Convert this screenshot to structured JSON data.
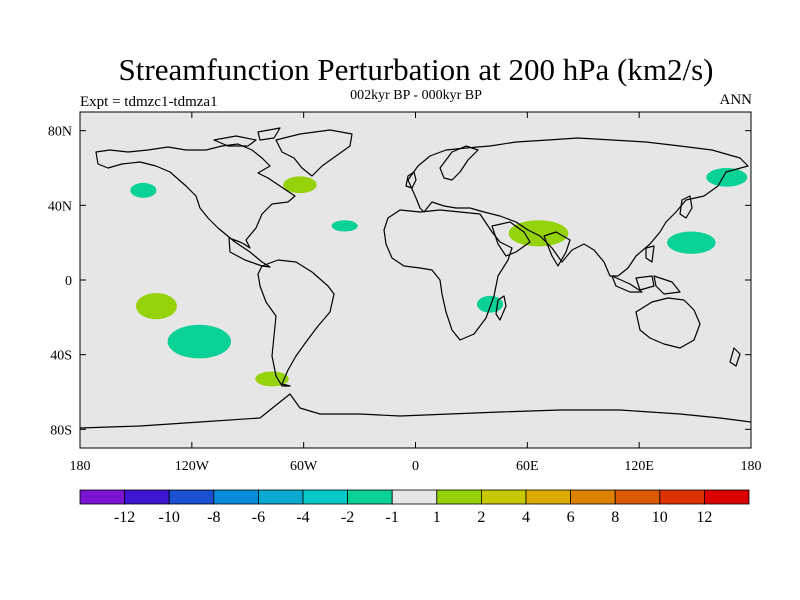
{
  "chart_data": {
    "type": "heatmap",
    "title": "Streamfunction Perturbation at 200 hPa (km2/s)",
    "subtitle": "002kyr BP - 000kyr BP",
    "left_label": "Expt = tdmzc1-tdmza1",
    "right_label": "ANN",
    "xlim": [
      -180,
      180
    ],
    "ylim": [
      -90,
      90
    ],
    "x_ticks": [
      {
        "value": -180,
        "label": "180"
      },
      {
        "value": -120,
        "label": "120W"
      },
      {
        "value": -60,
        "label": "60W"
      },
      {
        "value": 0,
        "label": "0"
      },
      {
        "value": 60,
        "label": "60E"
      },
      {
        "value": 120,
        "label": "120E"
      },
      {
        "value": 180,
        "label": "180"
      }
    ],
    "y_ticks": [
      {
        "value": 80,
        "label": "80N"
      },
      {
        "value": 40,
        "label": "40N"
      },
      {
        "value": 0,
        "label": "0"
      },
      {
        "value": -40,
        "label": "40S"
      },
      {
        "value": -80,
        "label": "80S"
      }
    ],
    "colorbar": {
      "colors": [
        "#7a14d2",
        "#3c14d2",
        "#1a50d2",
        "#0a8cdc",
        "#0aaad2",
        "#08c8c8",
        "#0ad296",
        "#e6e6e6",
        "#96d20a",
        "#c8c800",
        "#dcaa00",
        "#dc8200",
        "#dc5a00",
        "#dc3200",
        "#dc0000"
      ],
      "labels": [
        "-12",
        "-10",
        "-8",
        "-6",
        "-4",
        "-2",
        "-1",
        "1",
        "2",
        "4",
        "6",
        "8",
        "10",
        "12"
      ]
    },
    "anomalies": [
      {
        "lon": -146,
        "lat": 48,
        "rlon": 7,
        "rlat": 4,
        "color": "#0ad296",
        "range": "-2 to -1"
      },
      {
        "lon": -62,
        "lat": 51,
        "rlon": 9,
        "rlat": 4.5,
        "color": "#96d20a",
        "range": "1 to 2"
      },
      {
        "lon": -38,
        "lat": 29,
        "rlon": 7,
        "rlat": 3,
        "color": "#0ad296",
        "range": "-2 to -1"
      },
      {
        "lon": 66,
        "lat": 25,
        "rlon": 16,
        "rlat": 7,
        "color": "#96d20a",
        "range": "1 to 2"
      },
      {
        "lon": 167,
        "lat": 55,
        "rlon": 11,
        "rlat": 5,
        "color": "#0ad296",
        "range": "-2 to -1"
      },
      {
        "lon": 148,
        "lat": 20,
        "rlon": 13,
        "rlat": 6,
        "color": "#0ad296",
        "range": "-2 to -1"
      },
      {
        "lon": -139,
        "lat": -14,
        "rlon": 11,
        "rlat": 7,
        "color": "#96d20a",
        "range": "1 to 2"
      },
      {
        "lon": -116,
        "lat": -33,
        "rlon": 17,
        "rlat": 9,
        "color": "#0ad296",
        "range": "-2 to -1"
      },
      {
        "lon": 40,
        "lat": -13,
        "rlon": 7,
        "rlat": 4.5,
        "color": "#0ad296",
        "range": "-2 to -1"
      },
      {
        "lon": -77,
        "lat": -53,
        "rlon": 9,
        "rlat": 4,
        "color": "#96d20a",
        "range": "1 to 2"
      }
    ]
  }
}
